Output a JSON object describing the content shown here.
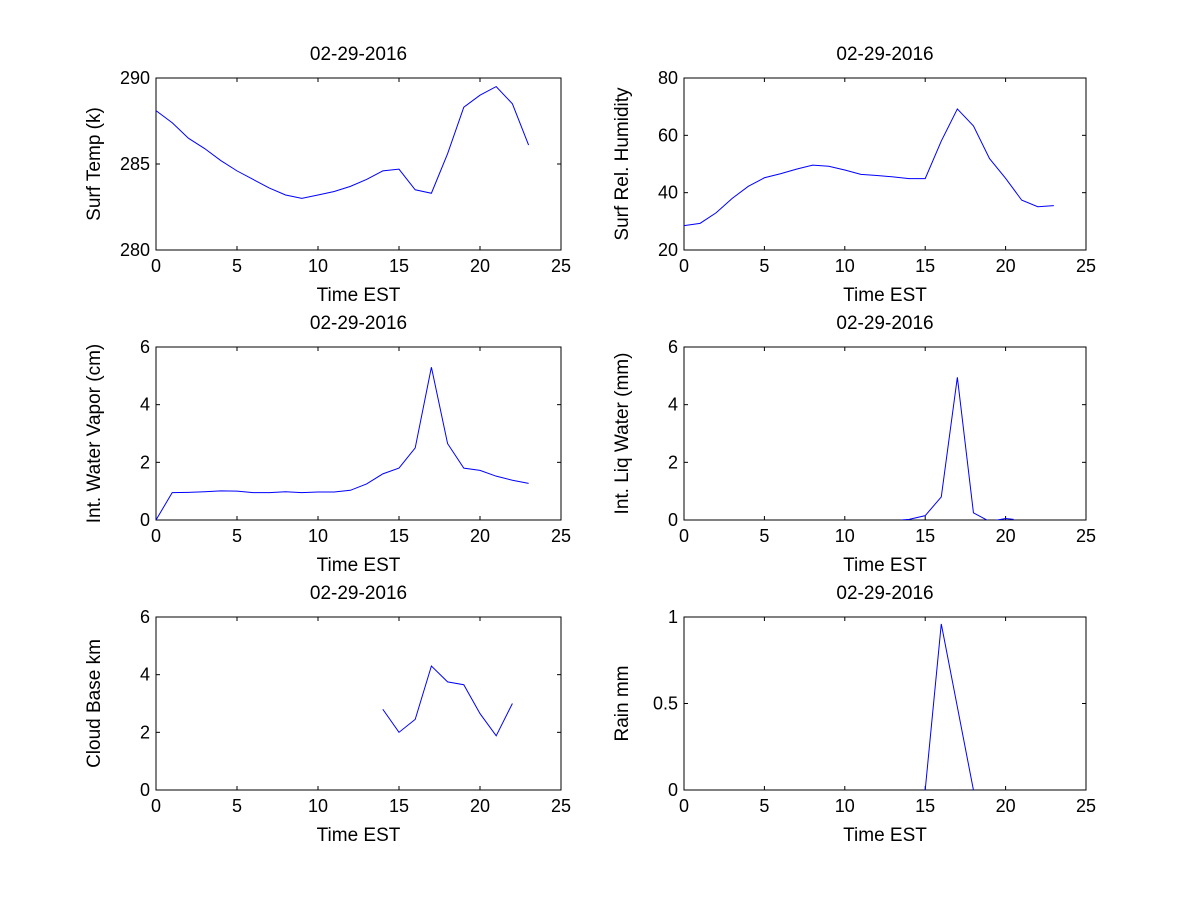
{
  "figure": {
    "background": "#ffffff"
  },
  "chart_data": [
    {
      "type": "line",
      "title": "02-29-2016",
      "xlabel": "Time EST",
      "ylabel": "Surf Temp (k)",
      "xlim": [
        0,
        25
      ],
      "ylim": [
        280,
        290
      ],
      "xticks": [
        0,
        5,
        10,
        15,
        20,
        25
      ],
      "yticks": [
        280,
        285,
        290
      ],
      "grid": false,
      "color": "#0000ff",
      "series": [
        {
          "x": [
            0,
            1,
            2,
            3,
            4,
            5,
            6,
            7,
            8,
            9,
            10,
            11,
            12,
            13,
            14,
            15,
            16,
            17,
            18,
            19,
            20,
            21,
            22,
            23
          ],
          "y": [
            288.1,
            287.4,
            286.5,
            285.9,
            285.2,
            284.6,
            284.1,
            283.6,
            283.2,
            283.0,
            283.2,
            283.4,
            283.7,
            284.1,
            284.6,
            284.7,
            283.5,
            283.3,
            285.6,
            288.3,
            289.0,
            289.5,
            288.5,
            286.1
          ]
        }
      ]
    },
    {
      "type": "line",
      "title": "02-29-2016",
      "xlabel": "Time EST",
      "ylabel": "Surf Rel. Humidity",
      "xlim": [
        0,
        25
      ],
      "ylim": [
        20,
        80
      ],
      "xticks": [
        0,
        5,
        10,
        15,
        20,
        25
      ],
      "yticks": [
        20,
        40,
        60,
        80
      ],
      "grid": false,
      "color": "#0000ff",
      "series": [
        {
          "x": [
            0,
            1,
            2,
            3,
            4,
            5,
            6,
            7,
            8,
            9,
            10,
            11,
            12,
            13,
            14,
            15,
            16,
            17,
            18,
            19,
            20,
            21,
            22,
            23
          ],
          "y": [
            28.5,
            29.3,
            33.0,
            38.0,
            42.2,
            45.2,
            46.6,
            48.2,
            49.6,
            49.2,
            47.9,
            46.4,
            46.0,
            45.5,
            44.9,
            44.9,
            58.0,
            69.2,
            63.3,
            51.9,
            45.0,
            37.4,
            35.1,
            35.5
          ]
        }
      ]
    },
    {
      "type": "line",
      "title": "02-29-2016",
      "xlabel": "Time EST",
      "ylabel": "Int. Water Vapor (cm)",
      "xlim": [
        0,
        25
      ],
      "ylim": [
        0,
        6
      ],
      "xticks": [
        0,
        5,
        10,
        15,
        20,
        25
      ],
      "yticks": [
        0,
        2,
        4,
        6
      ],
      "grid": false,
      "color": "#0000ff",
      "series": [
        {
          "x": [
            0,
            1,
            2,
            3,
            4,
            5,
            6,
            7,
            8,
            9,
            10,
            11,
            12,
            13,
            14,
            15,
            16,
            17,
            18,
            19,
            20,
            21,
            22,
            23
          ],
          "y": [
            0.0,
            0.95,
            0.96,
            0.98,
            1.01,
            1.0,
            0.95,
            0.95,
            0.98,
            0.95,
            0.97,
            0.97,
            1.03,
            1.25,
            1.6,
            1.8,
            2.5,
            5.3,
            2.65,
            1.8,
            1.72,
            1.52,
            1.38,
            1.27
          ]
        }
      ]
    },
    {
      "type": "line",
      "title": "02-29-2016",
      "xlabel": "Time EST",
      "ylabel": "Int. Liq Water (mm)",
      "xlim": [
        0,
        25
      ],
      "ylim": [
        0,
        6
      ],
      "xticks": [
        0,
        5,
        10,
        15,
        20,
        25
      ],
      "yticks": [
        0,
        2,
        4,
        6
      ],
      "grid": false,
      "color": "#0000ff",
      "series": [
        {
          "x": [
            13.5,
            14,
            15,
            16,
            17,
            18,
            19,
            20,
            20.5
          ],
          "y": [
            0.0,
            0.02,
            0.15,
            0.8,
            4.95,
            0.25,
            -0.05,
            0.05,
            0.02
          ]
        }
      ]
    },
    {
      "type": "line",
      "title": "02-29-2016",
      "xlabel": "Time EST",
      "ylabel": "Cloud Base km",
      "xlim": [
        0,
        25
      ],
      "ylim": [
        0,
        6
      ],
      "xticks": [
        0,
        5,
        10,
        15,
        20,
        25
      ],
      "yticks": [
        0,
        2,
        4,
        6
      ],
      "grid": false,
      "color": "#0000ff",
      "series": [
        {
          "x": [
            14,
            15,
            16,
            17,
            18,
            19,
            20,
            21,
            22
          ],
          "y": [
            2.8,
            2.0,
            2.45,
            4.3,
            3.75,
            3.65,
            2.65,
            1.88,
            3.0
          ]
        }
      ]
    },
    {
      "type": "line",
      "title": "02-29-2016",
      "xlabel": "Time EST",
      "ylabel": "Rain mm",
      "xlim": [
        0,
        25
      ],
      "ylim": [
        0,
        1
      ],
      "xticks": [
        0,
        5,
        10,
        15,
        20,
        25
      ],
      "yticks": [
        0,
        0.5,
        1
      ],
      "grid": false,
      "color": "#0000ff",
      "series": [
        {
          "x": [
            15,
            16,
            17,
            18
          ],
          "y": [
            0.0,
            0.96,
            0.48,
            0.0
          ]
        }
      ]
    }
  ]
}
